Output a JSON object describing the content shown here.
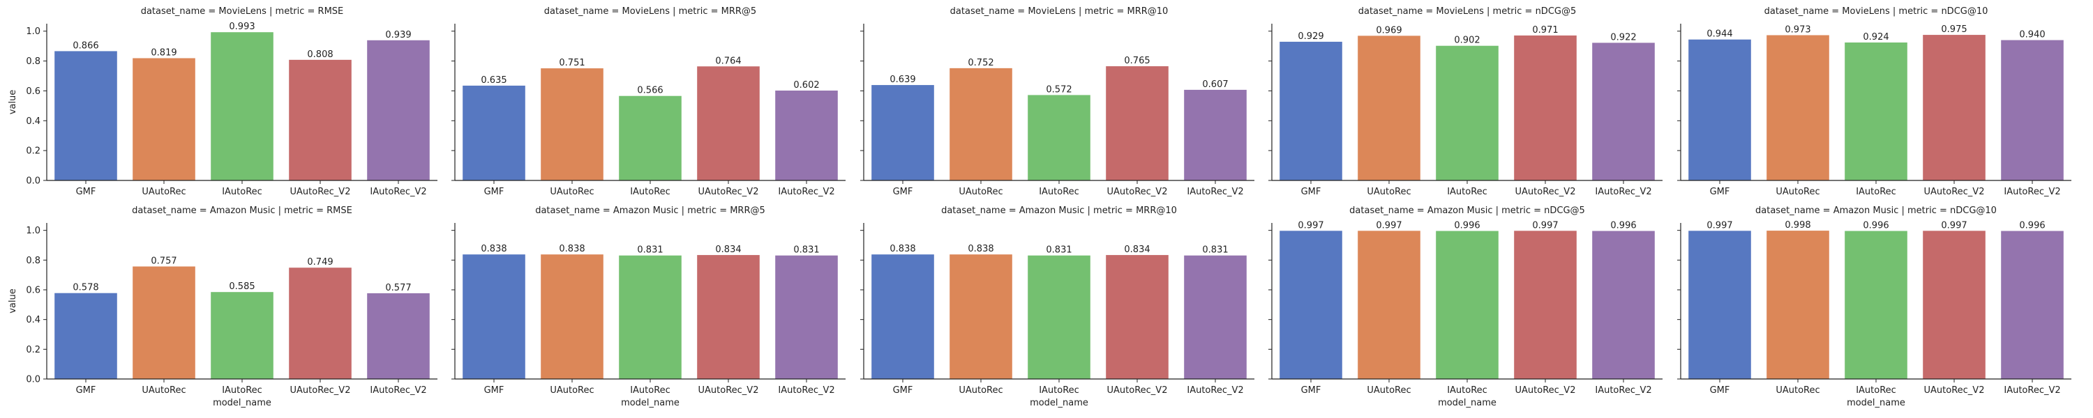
{
  "figure": {
    "ylabel": "value",
    "xlabel": "model_name"
  },
  "colors": {
    "GMF": "#5778c1",
    "UAutoRec": "#dc8758",
    "IAutoRec": "#74c070",
    "UAutoRec_V2": "#c56a6a",
    "IAutoRec_V2": "#9474ae"
  },
  "chart_data": [
    {
      "type": "bar",
      "title": "dataset_name = MovieLens | metric = RMSE",
      "categories": [
        "GMF",
        "UAutoRec",
        "IAutoRec",
        "UAutoRec_V2",
        "IAutoRec_V2"
      ],
      "values": [
        0.866,
        0.819,
        0.993,
        0.808,
        0.939
      ],
      "value_labels": [
        "0.866",
        "0.819",
        "0.993",
        "0.808",
        "0.939"
      ],
      "ylim": [
        0,
        1.05
      ],
      "yticks": [
        "0.0",
        "0.2",
        "0.4",
        "0.6",
        "0.8",
        "1.0"
      ]
    },
    {
      "type": "bar",
      "title": "dataset_name = MovieLens | metric = MRR@5",
      "categories": [
        "GMF",
        "UAutoRec",
        "IAutoRec",
        "UAutoRec_V2",
        "IAutoRec_V2"
      ],
      "values": [
        0.635,
        0.751,
        0.566,
        0.764,
        0.602
      ],
      "value_labels": [
        "0.635",
        "0.751",
        "0.566",
        "0.764",
        "0.602"
      ],
      "ylim": [
        0,
        1.05
      ]
    },
    {
      "type": "bar",
      "title": "dataset_name = MovieLens | metric = MRR@10",
      "categories": [
        "GMF",
        "UAutoRec",
        "IAutoRec",
        "UAutoRec_V2",
        "IAutoRec_V2"
      ],
      "values": [
        0.639,
        0.752,
        0.572,
        0.765,
        0.607
      ],
      "value_labels": [
        "0.639",
        "0.752",
        "0.572",
        "0.765",
        "0.607"
      ],
      "ylim": [
        0,
        1.05
      ]
    },
    {
      "type": "bar",
      "title": "dataset_name = MovieLens | metric = nDCG@5",
      "categories": [
        "GMF",
        "UAutoRec",
        "IAutoRec",
        "UAutoRec_V2",
        "IAutoRec_V2"
      ],
      "values": [
        0.929,
        0.969,
        0.902,
        0.971,
        0.922
      ],
      "value_labels": [
        "0.929",
        "0.969",
        "0.902",
        "0.971",
        "0.922"
      ],
      "ylim": [
        0,
        1.05
      ]
    },
    {
      "type": "bar",
      "title": "dataset_name = MovieLens | metric = nDCG@10",
      "categories": [
        "GMF",
        "UAutoRec",
        "IAutoRec",
        "UAutoRec_V2",
        "IAutoRec_V2"
      ],
      "values": [
        0.944,
        0.973,
        0.924,
        0.975,
        0.94
      ],
      "value_labels": [
        "0.944",
        "0.973",
        "0.924",
        "0.975",
        "0.940"
      ],
      "ylim": [
        0,
        1.05
      ]
    },
    {
      "type": "bar",
      "title": "dataset_name = Amazon Music | metric = RMSE",
      "categories": [
        "GMF",
        "UAutoRec",
        "IAutoRec",
        "UAutoRec_V2",
        "IAutoRec_V2"
      ],
      "values": [
        0.578,
        0.757,
        0.585,
        0.749,
        0.577
      ],
      "value_labels": [
        "0.578",
        "0.757",
        "0.585",
        "0.749",
        "0.577"
      ],
      "ylim": [
        0,
        1.05
      ],
      "yticks": [
        "0.0",
        "0.2",
        "0.4",
        "0.6",
        "0.8",
        "1.0"
      ]
    },
    {
      "type": "bar",
      "title": "dataset_name = Amazon Music | metric = MRR@5",
      "categories": [
        "GMF",
        "UAutoRec",
        "IAutoRec",
        "UAutoRec_V2",
        "IAutoRec_V2"
      ],
      "values": [
        0.838,
        0.838,
        0.831,
        0.834,
        0.831
      ],
      "value_labels": [
        "0.838",
        "0.838",
        "0.831",
        "0.834",
        "0.831"
      ],
      "ylim": [
        0,
        1.05
      ]
    },
    {
      "type": "bar",
      "title": "dataset_name = Amazon Music | metric = MRR@10",
      "categories": [
        "GMF",
        "UAutoRec",
        "IAutoRec",
        "UAutoRec_V2",
        "IAutoRec_V2"
      ],
      "values": [
        0.838,
        0.838,
        0.831,
        0.834,
        0.831
      ],
      "value_labels": [
        "0.838",
        "0.838",
        "0.831",
        "0.834",
        "0.831"
      ],
      "ylim": [
        0,
        1.05
      ]
    },
    {
      "type": "bar",
      "title": "dataset_name = Amazon Music | metric = nDCG@5",
      "categories": [
        "GMF",
        "UAutoRec",
        "IAutoRec",
        "UAutoRec_V2",
        "IAutoRec_V2"
      ],
      "values": [
        0.997,
        0.997,
        0.996,
        0.997,
        0.996
      ],
      "value_labels": [
        "0.997",
        "0.997",
        "0.996",
        "0.997",
        "0.996"
      ],
      "ylim": [
        0,
        1.05
      ]
    },
    {
      "type": "bar",
      "title": "dataset_name = Amazon Music | metric = nDCG@10",
      "categories": [
        "GMF",
        "UAutoRec",
        "IAutoRec",
        "UAutoRec_V2",
        "IAutoRec_V2"
      ],
      "values": [
        0.997,
        0.998,
        0.996,
        0.997,
        0.996
      ],
      "value_labels": [
        "0.997",
        "0.998",
        "0.996",
        "0.997",
        "0.996"
      ],
      "ylim": [
        0,
        1.05
      ]
    }
  ]
}
